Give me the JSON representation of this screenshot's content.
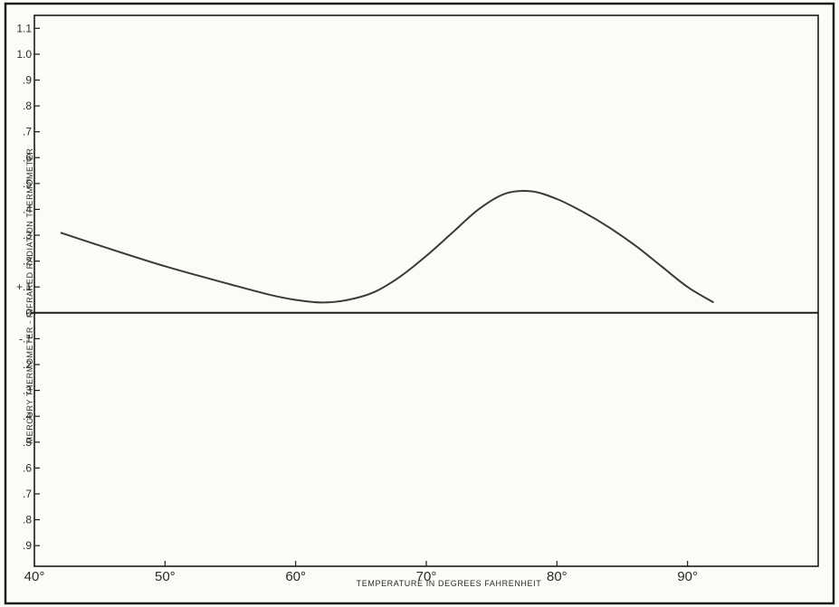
{
  "chart_data": {
    "type": "line",
    "title": "",
    "xlabel": "TEMPERATURE IN DEGREES FAHRENHEIT",
    "ylabel": "MERCURY THERMOMETER - INFRARED RADIATION THERMOMETER",
    "xlim": [
      40,
      100
    ],
    "ylim": [
      -1.0,
      1.2
    ],
    "grid": false,
    "x_ticks": [
      {
        "value": 40,
        "label": "40°"
      },
      {
        "value": 50,
        "label": "50°"
      },
      {
        "value": 60,
        "label": "60°"
      },
      {
        "value": 70,
        "label": "70°"
      },
      {
        "value": 80,
        "label": "80°"
      },
      {
        "value": 90,
        "label": "90°"
      }
    ],
    "y_ticks": [
      {
        "value": 1.1,
        "label": "1.1"
      },
      {
        "value": 1.0,
        "label": "1.0"
      },
      {
        "value": 0.9,
        "label": ".9"
      },
      {
        "value": 0.8,
        "label": ".8"
      },
      {
        "value": 0.7,
        "label": ".7"
      },
      {
        "value": 0.6,
        "label": ".6"
      },
      {
        "value": 0.5,
        "label": ".5"
      },
      {
        "value": 0.4,
        "label": ".4"
      },
      {
        "value": 0.3,
        "label": ".3"
      },
      {
        "value": 0.2,
        "label": ".2"
      },
      {
        "value": 0.1,
        "label": "+.1"
      },
      {
        "value": 0.0,
        "label": "0"
      },
      {
        "value": -0.1,
        "label": "-.1"
      },
      {
        "value": -0.2,
        "label": ".2"
      },
      {
        "value": -0.3,
        "label": ".3"
      },
      {
        "value": -0.4,
        "label": ".4"
      },
      {
        "value": -0.5,
        "label": ".5"
      },
      {
        "value": -0.6,
        "label": ".6"
      },
      {
        "value": -0.7,
        "label": ".7"
      },
      {
        "value": -0.8,
        "label": ".8"
      },
      {
        "value": -0.9,
        "label": ".9"
      }
    ],
    "series": [
      {
        "x": [
          42,
          45,
          50,
          55,
          58,
          60,
          62,
          64,
          66,
          68,
          70,
          72,
          74,
          76,
          78,
          80,
          82,
          84,
          86,
          88,
          90,
          92
        ],
        "y": [
          0.31,
          0.26,
          0.18,
          0.11,
          0.07,
          0.05,
          0.04,
          0.05,
          0.08,
          0.14,
          0.22,
          0.31,
          0.4,
          0.46,
          0.47,
          0.44,
          0.39,
          0.33,
          0.26,
          0.18,
          0.1,
          0.04
        ]
      }
    ],
    "colors": {
      "line": "#3a3a3a",
      "axis": "#2a2a2a",
      "background": "#fbfbf8"
    }
  }
}
